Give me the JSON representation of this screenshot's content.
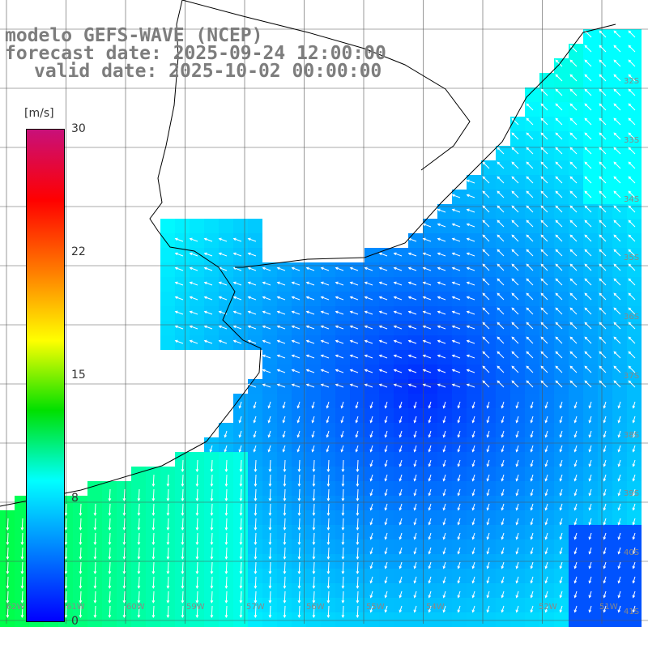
{
  "header": {
    "line1": "modelo GEFS-WAVE (NCEP)",
    "line2": "forecast date: 2025-09-24 12:00:00",
    "line3": "valid date: 2025-10-02 00:00:00"
  },
  "colorbar": {
    "units": "[m/s]",
    "ticks": [
      "30",
      "22",
      "15",
      "8",
      "0"
    ],
    "colors": [
      "#c8107a",
      "#ff0000",
      "#ff7a00",
      "#ffff00",
      "#00e000",
      "#00ffff",
      "#0080ff",
      "#0000ff"
    ]
  },
  "lat_labels": [
    "32S",
    "33S",
    "34S",
    "35S",
    "36S",
    "37S",
    "38S",
    "39S",
    "40S",
    "41S"
  ],
  "lon_labels": [
    "62W",
    "61W",
    "60W",
    "59W",
    "57W",
    "56W",
    "55W",
    "54W",
    "52W",
    "51W"
  ],
  "colors": {
    "land": "#ffffff",
    "grid": "#555555",
    "coast": "#000000",
    "vector": "#ffffff",
    "title": "#7d7d7d"
  }
}
